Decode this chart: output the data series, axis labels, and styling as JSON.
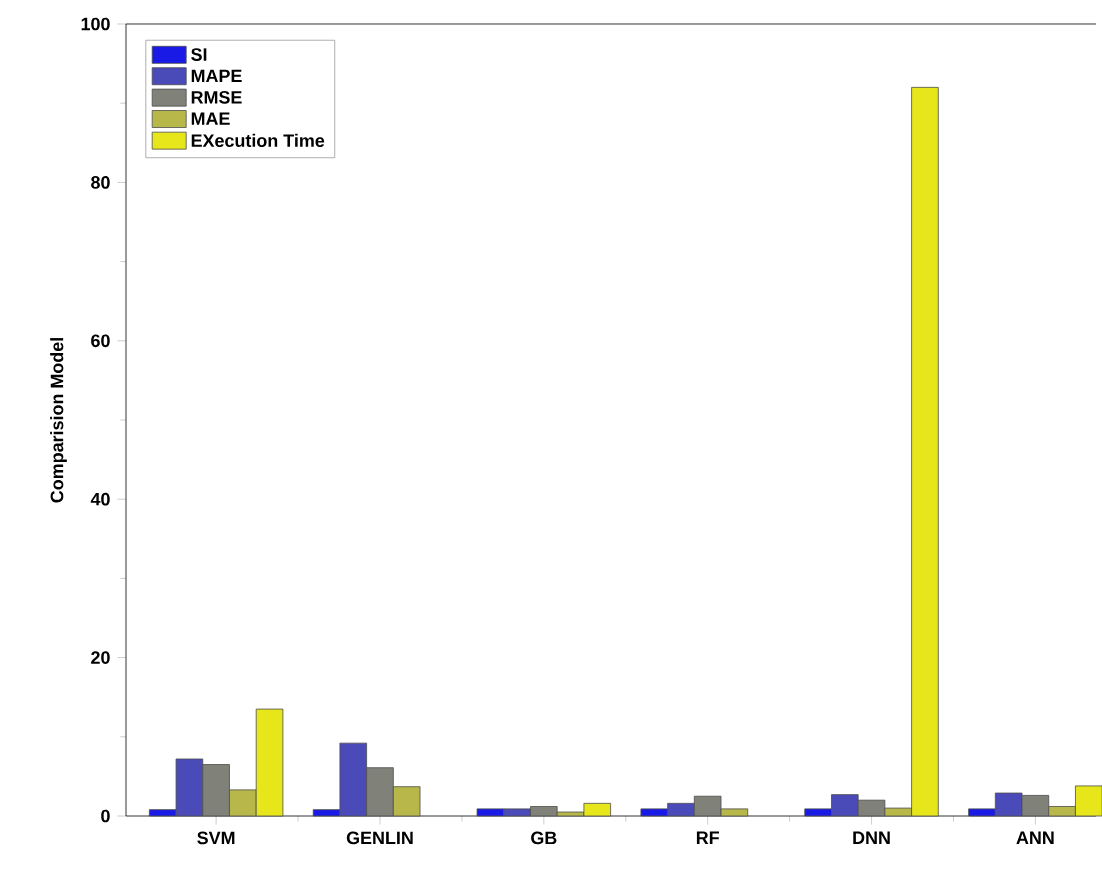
{
  "chart_data": {
    "type": "bar",
    "ylabel": "Comparision Model",
    "categories": [
      "SVM",
      "GENLIN",
      "GB",
      "RF",
      "DNN",
      "ANN"
    ],
    "series": [
      {
        "name": "SI",
        "color": "#1a1ae6",
        "values": [
          0.8,
          0.8,
          0.9,
          0.9,
          0.9,
          0.9
        ]
      },
      {
        "name": "MAPE",
        "color": "#4a4ab8",
        "values": [
          7.2,
          9.2,
          0.9,
          1.6,
          2.7,
          2.9
        ]
      },
      {
        "name": "RMSE",
        "color": "#80827a",
        "values": [
          6.5,
          6.1,
          1.2,
          2.5,
          2.0,
          2.6
        ]
      },
      {
        "name": "MAE",
        "color": "#b8b84a",
        "values": [
          3.3,
          3.7,
          0.5,
          0.9,
          1.0,
          1.2
        ]
      },
      {
        "name": "EXecution Time",
        "color": "#e6e61a",
        "values": [
          13.5,
          null,
          1.6,
          null,
          92,
          3.8
        ]
      }
    ],
    "ylim": [
      0,
      100
    ],
    "yticks": [
      0,
      20,
      40,
      60,
      80,
      100
    ],
    "grid": false,
    "legend": "top left"
  }
}
